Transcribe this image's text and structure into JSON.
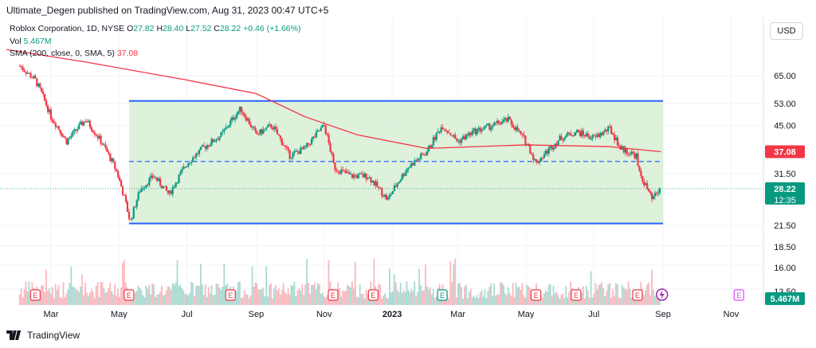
{
  "header": {
    "text": "Ultimate_Degen published on TradingView.com, Aug 31, 2023 00:47 UTC+5"
  },
  "currency_button": "USD",
  "legend": {
    "symbol_line": "Roblox Corporation, 1D, NYSE",
    "o_label": "O",
    "o_value": "27.82",
    "h_label": "H",
    "h_value": "28.40",
    "l_label": "L",
    "l_value": "27.52",
    "c_label": "C",
    "c_value": "28.22",
    "change": "+0.46 (+1.66%)",
    "vol_label": "Vol",
    "vol_value": "5.467M",
    "sma_label": "SMA (200, close, 0, SMA, 5)",
    "sma_value": "37.08"
  },
  "footer": {
    "brand": "TradingView"
  },
  "colors": {
    "up": "#089981",
    "down": "#f23645",
    "sma": "#f23645",
    "channel_line": "#2962ff",
    "channel_fill": "#d8efd5",
    "price_badge": "#089981",
    "sma_badge": "#f23645"
  },
  "chart_data": {
    "type": "candlestick",
    "symbol": "Roblox Corporation",
    "interval": "1D",
    "exchange": "NYSE",
    "x_ticks": [
      "Mar",
      "May",
      "Jul",
      "Sep",
      "Nov",
      "2023",
      "Mar",
      "May",
      "Jul",
      "Sep",
      "Nov"
    ],
    "y_ticks": [
      "65.00",
      "53.00",
      "45.00",
      "37.08",
      "31.50",
      "28.22",
      "12:35",
      "21.50",
      "18.50",
      "16.00",
      "13.50",
      "5.467M"
    ],
    "last_price": 28.22,
    "countdown": "12:35",
    "sma_value": 37.08,
    "volume_last": "5.467M",
    "channel": {
      "upper": 54.0,
      "middle": 34.5,
      "lower": 21.8
    },
    "price_series_approx": [
      {
        "d": "2022-02-01",
        "c": 70
      },
      {
        "d": "2022-02-15",
        "c": 63
      },
      {
        "d": "2022-03-01",
        "c": 48
      },
      {
        "d": "2022-03-15",
        "c": 40
      },
      {
        "d": "2022-04-01",
        "c": 47
      },
      {
        "d": "2022-04-15",
        "c": 40
      },
      {
        "d": "2022-04-29",
        "c": 32
      },
      {
        "d": "2022-05-11",
        "c": 22
      },
      {
        "d": "2022-05-20",
        "c": 28
      },
      {
        "d": "2022-06-01",
        "c": 31
      },
      {
        "d": "2022-06-15",
        "c": 27
      },
      {
        "d": "2022-07-01",
        "c": 34
      },
      {
        "d": "2022-07-15",
        "c": 38
      },
      {
        "d": "2022-08-01",
        "c": 42
      },
      {
        "d": "2022-08-18",
        "c": 51
      },
      {
        "d": "2022-09-01",
        "c": 42
      },
      {
        "d": "2022-09-15",
        "c": 45
      },
      {
        "d": "2022-10-01",
        "c": 36
      },
      {
        "d": "2022-10-15",
        "c": 38
      },
      {
        "d": "2022-11-01",
        "c": 45
      },
      {
        "d": "2022-11-10",
        "c": 33
      },
      {
        "d": "2022-11-25",
        "c": 31
      },
      {
        "d": "2022-12-10",
        "c": 31
      },
      {
        "d": "2022-12-28",
        "c": 26
      },
      {
        "d": "2023-01-15",
        "c": 33
      },
      {
        "d": "2023-02-01",
        "c": 37
      },
      {
        "d": "2023-02-15",
        "c": 45
      },
      {
        "d": "2023-03-01",
        "c": 40
      },
      {
        "d": "2023-03-15",
        "c": 43
      },
      {
        "d": "2023-04-01",
        "c": 45
      },
      {
        "d": "2023-04-15",
        "c": 47
      },
      {
        "d": "2023-05-01",
        "c": 40
      },
      {
        "d": "2023-05-10",
        "c": 34
      },
      {
        "d": "2023-06-01",
        "c": 41
      },
      {
        "d": "2023-06-15",
        "c": 43
      },
      {
        "d": "2023-07-01",
        "c": 41
      },
      {
        "d": "2023-07-15",
        "c": 44
      },
      {
        "d": "2023-07-25",
        "c": 38
      },
      {
        "d": "2023-08-08",
        "c": 36
      },
      {
        "d": "2023-08-10",
        "c": 32
      },
      {
        "d": "2023-08-22",
        "c": 26
      },
      {
        "d": "2023-08-30",
        "c": 28.22
      }
    ],
    "sma_series_approx": [
      {
        "d": "2022-01-20",
        "v": 79
      },
      {
        "d": "2022-04-01",
        "v": 72
      },
      {
        "d": "2022-07-01",
        "v": 63
      },
      {
        "d": "2022-09-01",
        "v": 57
      },
      {
        "d": "2022-10-15",
        "v": 48
      },
      {
        "d": "2022-12-01",
        "v": 42
      },
      {
        "d": "2023-02-01",
        "v": 38
      },
      {
        "d": "2023-05-01",
        "v": 39
      },
      {
        "d": "2023-07-15",
        "v": 38.5
      },
      {
        "d": "2023-08-30",
        "v": 37.08
      }
    ]
  }
}
